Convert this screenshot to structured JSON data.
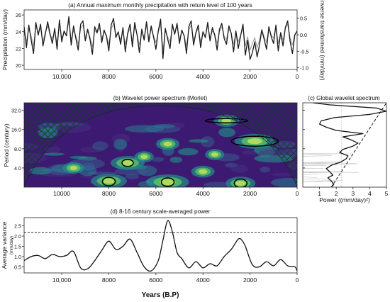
{
  "panel_titles": {
    "a": "(a) Annual maximum monthly precipitation with return level of 100 years",
    "b": "(b) Wavelet power spectrum (Morlet)",
    "c": "(c) Global wavelet spectrum",
    "d": "(d) 8-16 century scale-averaged power"
  },
  "axis_labels": {
    "a_left": "Precipitation (mm/day)",
    "a_right": "Inverse transformed (mm/day)",
    "b_y": "Period (century)",
    "c_x": "Power ((mm/day)²)",
    "d_y": "Average variance",
    "d_y_unit": "(mm/day)",
    "d_x": "Years (B.P)"
  },
  "colors": {
    "primary_series": "#1a1a1a",
    "secondary_series": "#9a9a9a",
    "wavelet_low": "#3b0f6f",
    "wavelet_mid": "#21908c",
    "wavelet_high": "#bfe05a",
    "coi_hatch": "#1f4d3a"
  },
  "chart_data": [
    {
      "type": "line",
      "panel": "a",
      "x_reversed": true,
      "xlim": [
        11600,
        0
      ],
      "ylim": [
        19.5,
        26.6
      ],
      "y2lim": [
        -1.05,
        0.75
      ],
      "x_ticks": [
        10000,
        8000,
        6000,
        4000,
        2000,
        0
      ],
      "x_tick_labels": [
        "10,000",
        "8000",
        "6000",
        "4000",
        "2000",
        "0"
      ],
      "y_ticks": [
        20,
        22,
        24,
        26
      ],
      "y2_ticks": [
        -1.0,
        -0.5,
        0.0,
        0.5
      ],
      "y2_tick_labels": [
        "-1.0",
        "-0.5",
        "0.0",
        "0.5"
      ],
      "x": [
        11600,
        11500,
        11400,
        11300,
        11200,
        11100,
        11000,
        10900,
        10800,
        10700,
        10600,
        10500,
        10400,
        10300,
        10200,
        10100,
        10000,
        9900,
        9800,
        9700,
        9600,
        9500,
        9400,
        9300,
        9200,
        9100,
        9000,
        8900,
        8800,
        8700,
        8600,
        8500,
        8400,
        8300,
        8200,
        8100,
        8000,
        7900,
        7800,
        7700,
        7600,
        7500,
        7400,
        7300,
        7200,
        7100,
        7000,
        6900,
        6800,
        6700,
        6600,
        6500,
        6400,
        6300,
        6200,
        6100,
        6000,
        5900,
        5800,
        5700,
        5600,
        5500,
        5400,
        5300,
        5200,
        5100,
        5000,
        4900,
        4800,
        4700,
        4600,
        4500,
        4400,
        4300,
        4200,
        4100,
        4000,
        3900,
        3800,
        3700,
        3600,
        3500,
        3400,
        3300,
        3200,
        3100,
        3000,
        2900,
        2800,
        2700,
        2600,
        2500,
        2400,
        2300,
        2200,
        2100,
        2000,
        1900,
        1800,
        1700,
        1600,
        1500,
        1400,
        1300,
        1200,
        1100,
        1000,
        900,
        800,
        700,
        600,
        500,
        400,
        300,
        200,
        100,
        0
      ],
      "series": [
        {
          "values": [
            24.6,
            22.1,
            24.8,
            23.0,
            21.4,
            25.1,
            23.6,
            24.9,
            22.3,
            23.7,
            25.2,
            23.8,
            22.6,
            24.4,
            21.9,
            25.4,
            22.8,
            24.1,
            23.5,
            25.8,
            22.4,
            24.7,
            23.2,
            21.8,
            24.9,
            25.3,
            22.9,
            24.3,
            23.1,
            21.3,
            24.6,
            23.9,
            25.0,
            22.7,
            24.2,
            23.4,
            21.7,
            24.8,
            25.6,
            23.3,
            24.0,
            22.5,
            24.5,
            21.6,
            23.8,
            24.9,
            22.2,
            25.1,
            23.6,
            21.5,
            24.3,
            23.0,
            25.2,
            22.8,
            24.7,
            23.4,
            21.9,
            24.1,
            25.5,
            20.8,
            24.4,
            23.1,
            22.0,
            24.9,
            23.7,
            25.0,
            22.6,
            24.2,
            23.5,
            21.4,
            24.6,
            25.3,
            22.4,
            23.9,
            24.8,
            22.1,
            24.0,
            23.3,
            25.1,
            22.9,
            24.5,
            23.6,
            21.8,
            24.3,
            25.0,
            23.2,
            22.5,
            24.7,
            23.8,
            21.6,
            24.1,
            22.0,
            23.5,
            24.9,
            21.2,
            23.0,
            20.7,
            21.5,
            22.8,
            21.0,
            22.4,
            24.2,
            23.1,
            21.9,
            24.6,
            23.4,
            22.6,
            24.8,
            21.7,
            23.9,
            22.3,
            24.5,
            25.3,
            22.9,
            21.4,
            23.6,
            24.1
          ]
        },
        {
          "values": [
            24.2,
            22.8,
            24.3,
            23.5,
            22.3,
            24.6,
            23.9,
            24.4,
            22.9,
            23.9,
            24.7,
            23.6,
            23.2,
            24.1,
            22.7,
            24.9,
            23.3,
            23.9,
            23.7,
            25.3,
            23.0,
            24.2,
            23.5,
            22.5,
            24.4,
            24.8,
            23.4,
            24.0,
            23.4,
            22.2,
            24.2,
            23.8,
            24.5,
            23.2,
            24.0,
            23.6,
            22.5,
            24.3,
            25.0,
            23.6,
            23.9,
            23.0,
            24.1,
            22.5,
            23.7,
            24.4,
            22.9,
            24.6,
            23.7,
            22.4,
            24.0,
            23.4,
            24.7,
            23.2,
            24.3,
            23.5,
            22.7,
            23.9,
            25.0,
            21.8,
            24.1,
            23.4,
            22.8,
            24.5,
            23.8,
            24.6,
            23.1,
            24.0,
            23.6,
            22.3,
            24.2,
            24.8,
            23.0,
            23.8,
            24.4,
            22.8,
            23.9,
            23.5,
            24.7,
            23.3,
            24.1,
            23.7,
            22.6,
            24.0,
            24.6,
            23.5,
            23.1,
            24.3,
            23.8,
            22.5,
            23.9,
            22.8,
            23.6,
            24.5,
            22.3,
            23.4,
            21.8,
            22.6,
            23.3,
            22.1,
            23.0,
            24.3,
            23.4,
            22.7,
            24.5,
            23.6,
            23.2,
            24.7,
            22.6,
            23.9,
            23.0,
            24.4,
            24.9,
            23.3,
            22.4,
            23.7,
            24.0
          ]
        }
      ]
    },
    {
      "type": "heatmap",
      "panel": "b",
      "x_reversed": true,
      "xlim": [
        11600,
        0
      ],
      "x_ticks": [
        10000,
        8000,
        6000,
        4000,
        2000,
        0
      ],
      "x_tick_labels": [
        "10000",
        "8000",
        "6000",
        "4000",
        "2000",
        "0"
      ],
      "y_log2": true,
      "ylim": [
        2,
        42
      ],
      "y_ticks": [
        4,
        8,
        16,
        32
      ],
      "y_tick_labels": [
        "4.0",
        "8.0",
        "16.0",
        "32.0"
      ],
      "power_centers": [
        {
          "year": 5500,
          "period": 2.4,
          "strength": 1.0
        },
        {
          "year": 8000,
          "period": 2.5,
          "strength": 0.85
        },
        {
          "year": 2400,
          "period": 2.3,
          "strength": 0.7
        },
        {
          "year": 7200,
          "period": 4.8,
          "strength": 0.8
        },
        {
          "year": 1800,
          "period": 10.5,
          "strength": 0.95
        },
        {
          "year": 5500,
          "period": 9.5,
          "strength": 0.55
        },
        {
          "year": 3000,
          "period": 22,
          "strength": 0.6
        },
        {
          "year": 9500,
          "period": 4.0,
          "strength": 0.5
        },
        {
          "year": 4000,
          "period": 3.5,
          "strength": 0.55
        },
        {
          "year": 6500,
          "period": 6.0,
          "strength": 0.45
        },
        {
          "year": 3500,
          "period": 6.5,
          "strength": 0.45
        }
      ],
      "significant_regions": [
        {
          "year": 5500,
          "period": 2.4
        },
        {
          "year": 8000,
          "period": 2.45
        },
        {
          "year": 2400,
          "period": 2.3
        },
        {
          "year": 7200,
          "period": 4.8
        },
        {
          "year": 1800,
          "period": 10.5
        },
        {
          "year": 3000,
          "period": 22
        }
      ]
    },
    {
      "type": "line",
      "panel": "c",
      "xlim": [
        0,
        5
      ],
      "x_ticks": [
        1,
        2,
        3,
        4,
        5
      ],
      "y_log2": true,
      "ylim": [
        2,
        42
      ],
      "series": [
        {
          "period": [
            2.0,
            2.2,
            2.5,
            2.8,
            3.1,
            3.5,
            3.9,
            4.4,
            5.0,
            5.6,
            6.2,
            7.0,
            7.8,
            8.8,
            9.8,
            11.0,
            12.3,
            13.8,
            15.5,
            17.4,
            19.5,
            21.9,
            24.6,
            27.6,
            31.0,
            34.8,
            39.0,
            42.0
          ],
          "values": [
            1.7,
            1.85,
            1.7,
            1.5,
            1.8,
            1.6,
            1.4,
            1.7,
            2.3,
            2.6,
            2.7,
            2.2,
            2.4,
            3.0,
            3.3,
            2.9,
            2.4,
            3.6,
            2.0,
            1.4,
            1.0,
            1.1,
            1.9,
            4.0,
            5.0,
            4.4,
            1.6,
            0.6
          ]
        },
        {
          "period": [
            2.0,
            42.0
          ],
          "values": [
            1.7,
            5.0
          ]
        }
      ]
    },
    {
      "type": "line",
      "panel": "d",
      "x_reversed": true,
      "xlim": [
        11600,
        0
      ],
      "ylim": [
        0.2,
        2.9
      ],
      "x_ticks": [
        10000,
        8000,
        6000,
        4000,
        2000,
        0
      ],
      "x_tick_labels": [
        "10,000",
        "8000",
        "6000",
        "4000",
        "2000",
        "0"
      ],
      "y_ticks": [
        0.5,
        1.0,
        1.5,
        2.0,
        2.5
      ],
      "y_tick_labels": [
        "0.5",
        "1.0",
        "1.5",
        "2.0",
        "2.5"
      ],
      "significance_level": 2.18,
      "x": [
        11600,
        11300,
        11000,
        10700,
        10400,
        10100,
        9800,
        9500,
        9200,
        8900,
        8600,
        8300,
        8000,
        7700,
        7400,
        7100,
        6800,
        6500,
        6200,
        5900,
        5700,
        5500,
        5300,
        5100,
        4900,
        4600,
        4300,
        4000,
        3700,
        3400,
        3100,
        2800,
        2500,
        2350,
        2200,
        1900,
        1600,
        1300,
        1000,
        700,
        400,
        100,
        0
      ],
      "values": [
        0.8,
        1.0,
        1.05,
        0.9,
        1.1,
        1.0,
        1.05,
        1.25,
        0.45,
        0.4,
        0.8,
        1.3,
        1.75,
        1.35,
        1.5,
        1.85,
        1.2,
        0.5,
        0.3,
        0.8,
        1.8,
        2.75,
        2.2,
        1.2,
        0.9,
        0.45,
        0.75,
        0.45,
        0.65,
        0.55,
        1.0,
        1.35,
        1.85,
        1.8,
        1.5,
        0.6,
        0.5,
        0.75,
        0.55,
        0.85,
        0.55,
        0.5,
        0.3
      ]
    }
  ]
}
